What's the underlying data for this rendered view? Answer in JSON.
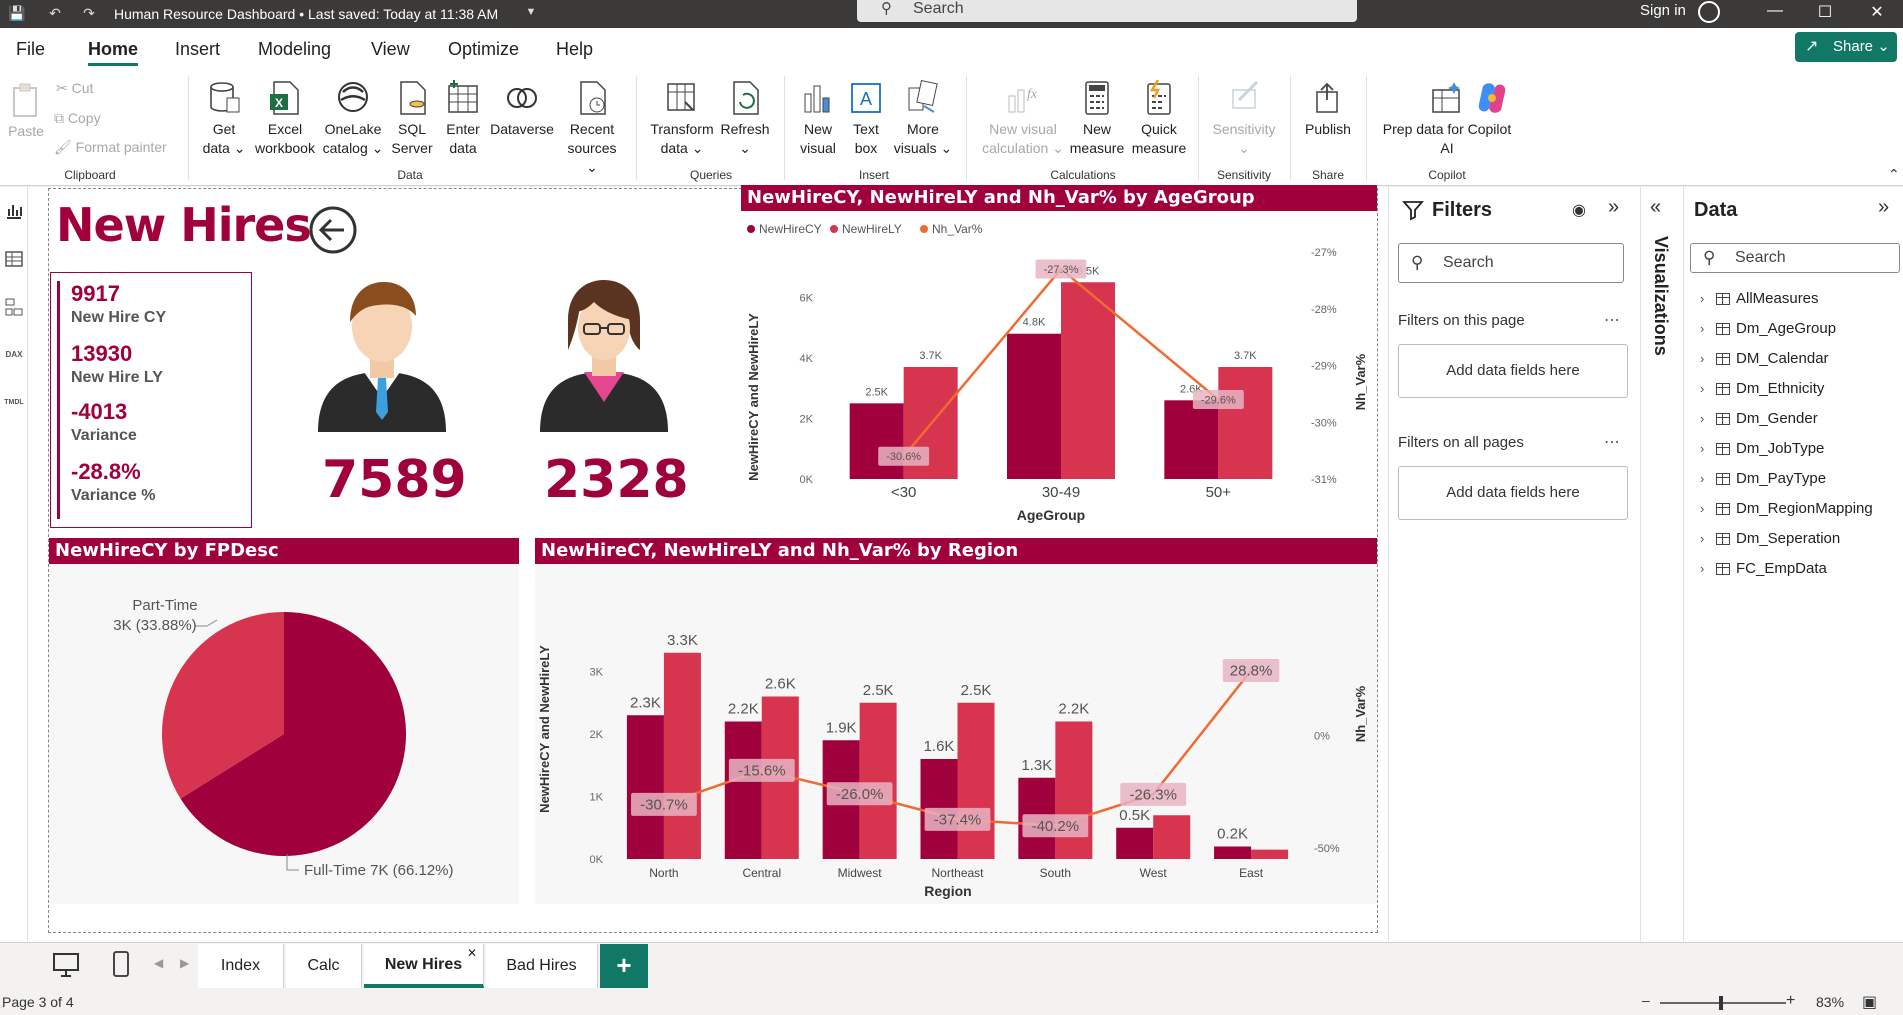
{
  "titlebar": {
    "title": "Human Resource Dashboard • Last saved: Today at 11:38 AM",
    "search": "Search",
    "signin": "Sign in"
  },
  "menu": {
    "tabs": [
      "File",
      "Home",
      "Insert",
      "Modeling",
      "View",
      "Optimize",
      "Help"
    ],
    "active": "Home",
    "share": "Share"
  },
  "ribbon": {
    "clipboard": {
      "paste": "Paste",
      "cut": "Cut",
      "copy": "Copy",
      "format_painter": "Format painter",
      "label": "Clipboard"
    },
    "data": {
      "label": "Data",
      "buttons": [
        {
          "l1": "Get",
          "l2": "data ⌄"
        },
        {
          "l1": "Excel",
          "l2": "workbook"
        },
        {
          "l1": "OneLake",
          "l2": "catalog ⌄"
        },
        {
          "l1": "SQL",
          "l2": "Server"
        },
        {
          "l1": "Enter",
          "l2": "data"
        },
        {
          "l1": "Dataverse",
          "l2": ""
        },
        {
          "l1": "Recent",
          "l2": "sources ⌄"
        }
      ]
    },
    "queries": {
      "label": "Queries",
      "transform_1": "Transform",
      "transform_2": "data ⌄",
      "refresh": "Refresh"
    },
    "insert": {
      "label": "Insert",
      "new_visual_1": "New",
      "new_visual_2": "visual",
      "text_box_1": "Text",
      "text_box_2": "box",
      "more_1": "More",
      "more_2": "visuals ⌄"
    },
    "calculations": {
      "label": "Calculations",
      "nvc_1": "New visual",
      "nvc_2": "calculation ⌄",
      "nm_1": "New",
      "nm_2": "measure",
      "qm_1": "Quick",
      "qm_2": "measure"
    },
    "sensitivity": {
      "label": "Sensitivity",
      "btn": "Sensitivity"
    },
    "share": {
      "label": "Share",
      "btn": "Publish"
    },
    "copilot": {
      "label": "Copilot",
      "l1": "Prep data for Copilot",
      "l2": "AI"
    }
  },
  "report": {
    "title": "New Hires",
    "kpis": [
      {
        "value": "9917",
        "label": "New Hire CY"
      },
      {
        "value": "13930",
        "label": "New Hire LY"
      },
      {
        "value": "-4013",
        "label": "Variance"
      },
      {
        "value": "-28.8%",
        "label": "Variance %"
      }
    ],
    "male_count": "7589",
    "female_count": "2328"
  },
  "chart_data": [
    {
      "type": "bar",
      "title": "NewHireCY, NewHireLY and Nh_Var% by AgeGroup",
      "legend": [
        "NewHireCY",
        "NewHireLY",
        "Nh_Var%"
      ],
      "xlabel": "AgeGroup",
      "ylabel": "NewHireCY and NewHireLY",
      "y2label": "Nh_Var%",
      "categories": [
        "<30",
        "30-49",
        "50+"
      ],
      "series": [
        {
          "name": "NewHireCY",
          "values": [
            2500,
            4800,
            2600
          ],
          "labels": [
            "2.5K",
            "4.8K",
            "2.6K"
          ],
          "color": "#a0003c"
        },
        {
          "name": "NewHireLY",
          "values": [
            3700,
            6500,
            3700
          ],
          "labels": [
            "3.7K",
            "6.5K",
            "3.7K"
          ],
          "color": "#d6344f"
        },
        {
          "name": "Nh_Var%",
          "values": [
            -30.6,
            -27.3,
            -29.6
          ],
          "labels": [
            "-30.6%",
            "-27.3%",
            "-29.6%"
          ],
          "color": "#f06a32"
        }
      ],
      "ylim": [
        0,
        7500
      ],
      "yticks": [
        "0K",
        "2K",
        "4K",
        "6K"
      ],
      "y2lim": [
        -31,
        -27
      ],
      "y2ticks": [
        "-27%",
        "-28%",
        "-29%",
        "-30%",
        "-31%"
      ]
    },
    {
      "type": "pie",
      "title": "NewHireCY by FPDesc",
      "slices": [
        {
          "name": "Full-Time",
          "value": 66.12,
          "label": "Full-Time 7K (66.12%)",
          "color": "#a0003c"
        },
        {
          "name": "Part-Time",
          "value": 33.88,
          "label_1": "Part-Time",
          "label_2": "3K (33.88%)",
          "color": "#d6344f"
        }
      ]
    },
    {
      "type": "bar",
      "title": "NewHireCY, NewHireLY and Nh_Var% by Region",
      "xlabel": "Region",
      "ylabel": "NewHireCY and NewHireLY",
      "y2label": "Nh_Var%",
      "categories": [
        "North",
        "Central",
        "Midwest",
        "Northeast",
        "South",
        "West",
        "East"
      ],
      "series": [
        {
          "name": "NewHireCY",
          "values": [
            2300,
            2200,
            1900,
            1600,
            1300,
            500,
            200
          ],
          "labels": [
            "2.3K",
            "2.2K",
            "1.9K",
            "1.6K",
            "1.3K",
            "0.5K",
            "0.2K"
          ],
          "color": "#a0003c"
        },
        {
          "name": "NewHireLY",
          "values": [
            3300,
            2600,
            2500,
            2500,
            2200,
            700,
            150
          ],
          "labels": [
            "3.3K",
            "2.6K",
            "2.5K",
            "2.5K",
            "2.2K",
            "",
            ""
          ],
          "color": "#d6344f"
        },
        {
          "name": "Nh_Var%",
          "values": [
            -30.7,
            -15.6,
            -26.0,
            -37.4,
            -40.2,
            -26.3,
            28.8
          ],
          "labels": [
            "-30.7%",
            "-15.6%",
            "-26.0%",
            "-37.4%",
            "-40.2%",
            "-26.3%",
            "28.8%"
          ],
          "color": "#f06a32"
        }
      ],
      "ylim": [
        0,
        3600
      ],
      "yticks": [
        "0K",
        "1K",
        "2K",
        "3K"
      ],
      "y2lim": [
        -55,
        45
      ],
      "y2ticks": [
        "0%",
        "-50%"
      ]
    }
  ],
  "filters": {
    "title": "Filters",
    "search": "Search",
    "this_page": "Filters on this page",
    "all_pages": "Filters on all pages",
    "drop": "Add data fields here"
  },
  "visualizations": {
    "label": "Visualizations"
  },
  "data_pane": {
    "title": "Data",
    "search": "Search",
    "items": [
      "AllMeasures",
      "Dm_AgeGroup",
      "DM_Calendar",
      "Dm_Ethnicity",
      "Dm_Gender",
      "Dm_JobType",
      "Dm_PayType",
      "Dm_RegionMapping",
      "Dm_Seperation",
      "FC_EmpData"
    ]
  },
  "pages": {
    "tabs": [
      "Index",
      "Calc",
      "New Hires",
      "Bad Hires"
    ],
    "active": "New Hires"
  },
  "status": {
    "page": "Page 3 of 4",
    "zoom": "83%"
  },
  "colors": {
    "accent": "#117865",
    "brand": "#a0003c",
    "ly": "#d6344f",
    "var": "#f06a32"
  }
}
